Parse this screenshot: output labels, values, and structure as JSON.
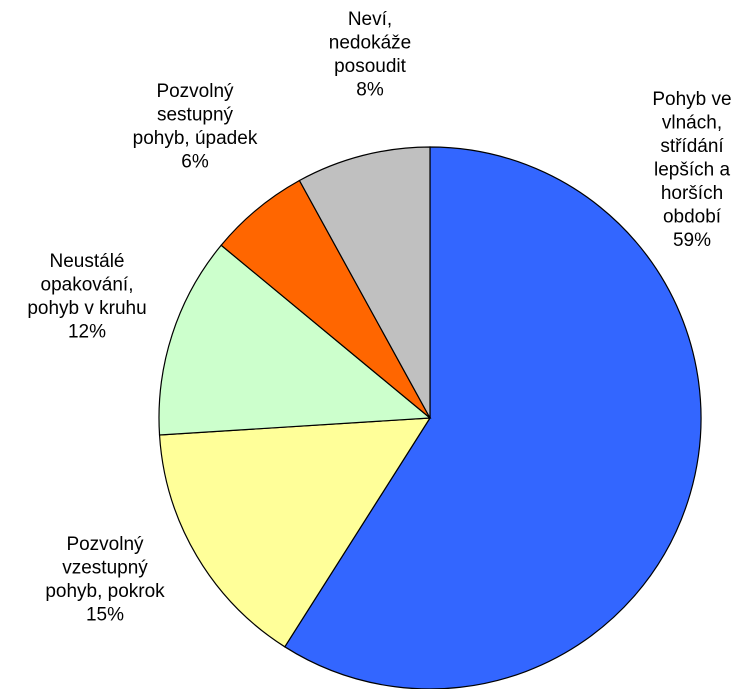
{
  "chart_data": {
    "type": "pie",
    "categories": [
      [
        "Pohyb ve",
        "vlnách,",
        "střídání",
        "lepších a",
        "horších",
        "období"
      ],
      [
        "Pozvolný",
        "vzestupný",
        "pohyb, pokrok"
      ],
      [
        "Neustálé",
        "opakování,",
        "pohyb v kruhu"
      ],
      [
        "Pozvolný",
        "sestupný",
        "pohyb, úpadek"
      ],
      [
        "Neví,",
        "nedokáže",
        "posoudit"
      ]
    ],
    "values": [
      59,
      15,
      12,
      6,
      8
    ],
    "value_labels": [
      "59%",
      "15%",
      "12%",
      "6%",
      "8%"
    ],
    "colors": [
      "#3366ff",
      "#ffff99",
      "#ccffcc",
      "#ff6600",
      "#c0c0c0"
    ]
  }
}
